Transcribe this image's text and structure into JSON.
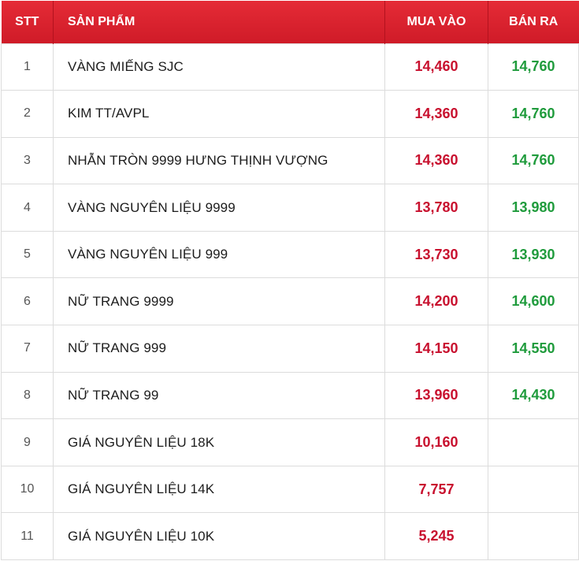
{
  "header": {
    "stt": "STT",
    "product": "SẢN PHẨM",
    "buy": "MUA VÀO",
    "sell": "BÁN RA"
  },
  "rows": [
    {
      "stt": "1",
      "name": "VÀNG MIẾNG SJC",
      "buy": "14,460",
      "sell": "14,760"
    },
    {
      "stt": "2",
      "name": "KIM TT/AVPL",
      "buy": "14,360",
      "sell": "14,760"
    },
    {
      "stt": "3",
      "name": "NHẪN TRÒN 9999 HƯNG THỊNH VƯỢNG",
      "buy": "14,360",
      "sell": "14,760"
    },
    {
      "stt": "4",
      "name": "VÀNG NGUYÊN LIỆU 9999",
      "buy": "13,780",
      "sell": "13,980"
    },
    {
      "stt": "5",
      "name": "VÀNG NGUYÊN LIỆU 999",
      "buy": "13,730",
      "sell": "13,930"
    },
    {
      "stt": "6",
      "name": "NỮ TRANG 9999",
      "buy": "14,200",
      "sell": "14,600"
    },
    {
      "stt": "7",
      "name": "NỮ TRANG 999",
      "buy": "14,150",
      "sell": "14,550"
    },
    {
      "stt": "8",
      "name": "NỮ TRANG 99",
      "buy": "13,960",
      "sell": "14,430"
    },
    {
      "stt": "9",
      "name": "GIÁ NGUYÊN LIỆU 18K",
      "buy": "10,160",
      "sell": ""
    },
    {
      "stt": "10",
      "name": "GIÁ NGUYÊN LIỆU 14K",
      "buy": "7,757",
      "sell": ""
    },
    {
      "stt": "11",
      "name": "GIÁ NGUYÊN LIỆU 10K",
      "buy": "5,245",
      "sell": ""
    }
  ],
  "colors": {
    "header_bg": "#d9222e",
    "buy": "#c8102e",
    "sell": "#1f9b3c"
  }
}
